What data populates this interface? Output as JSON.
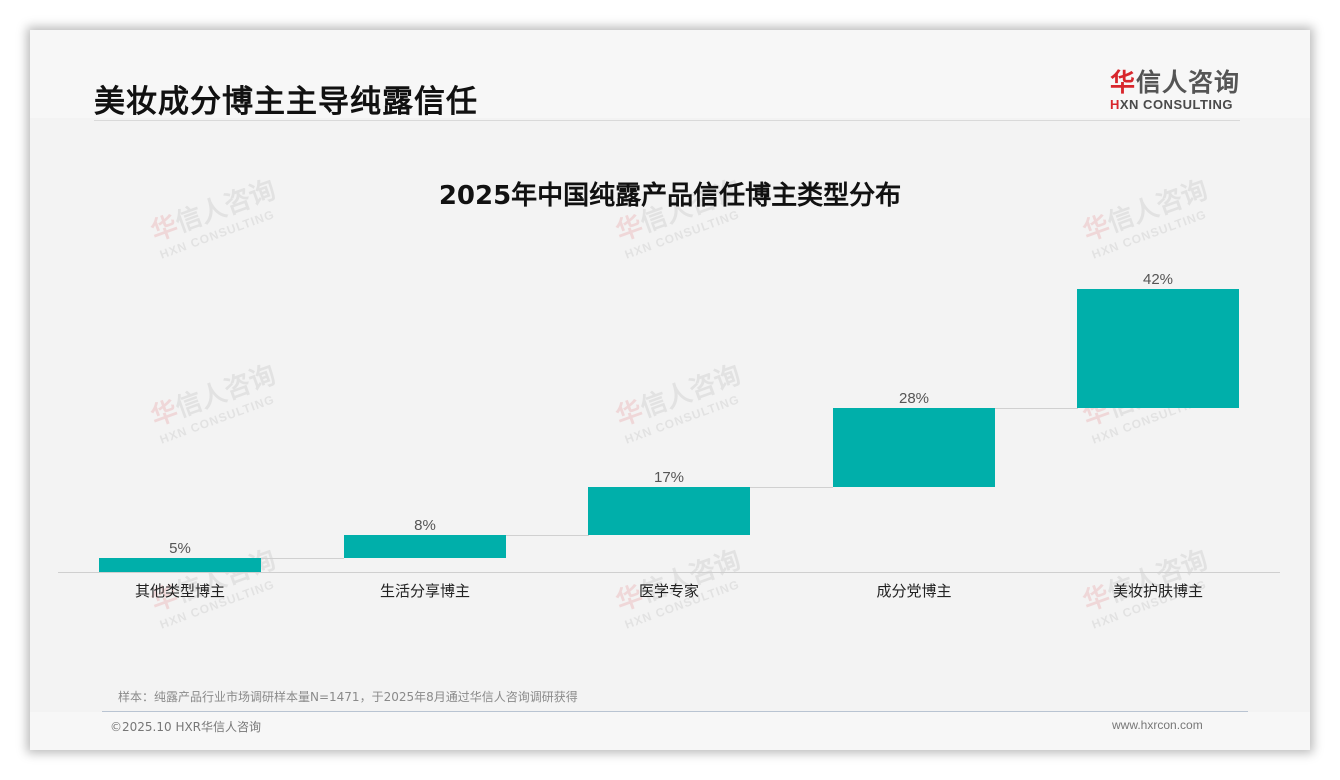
{
  "header": {
    "title": "美妆成分博主主导纯露信任",
    "logo": {
      "cn_highlight": "华",
      "cn_rest": "信人咨询",
      "en_highlight": "H",
      "en_rest": "XN CONSULTING"
    }
  },
  "watermark": {
    "cn_highlight": "华",
    "cn_rest": "信人咨询",
    "en": "HXN CONSULTING"
  },
  "chart_data": {
    "type": "bar",
    "subtype": "waterfall",
    "title": "2025年中国纯露产品信任博主类型分布",
    "categories": [
      "其他类型博主",
      "生活分享博主",
      "医学专家",
      "成分党博主",
      "美妆护肤博主"
    ],
    "values": [
      5,
      8,
      17,
      28,
      42
    ],
    "value_labels": [
      "5%",
      "8%",
      "17%",
      "28%",
      "42%"
    ],
    "unit": "%",
    "xlabel": "",
    "ylabel": "",
    "ylim": [
      0,
      100
    ],
    "grid": false,
    "legend": null,
    "bar_color": "#00afaa"
  },
  "footer": {
    "note": "样本：纯露产品行业市场调研样本量N=1471，于2025年8月通过华信人咨询调研获得",
    "copyright": "©2025.10 HXR华信人咨询",
    "website": "www.hxrcon.com"
  }
}
